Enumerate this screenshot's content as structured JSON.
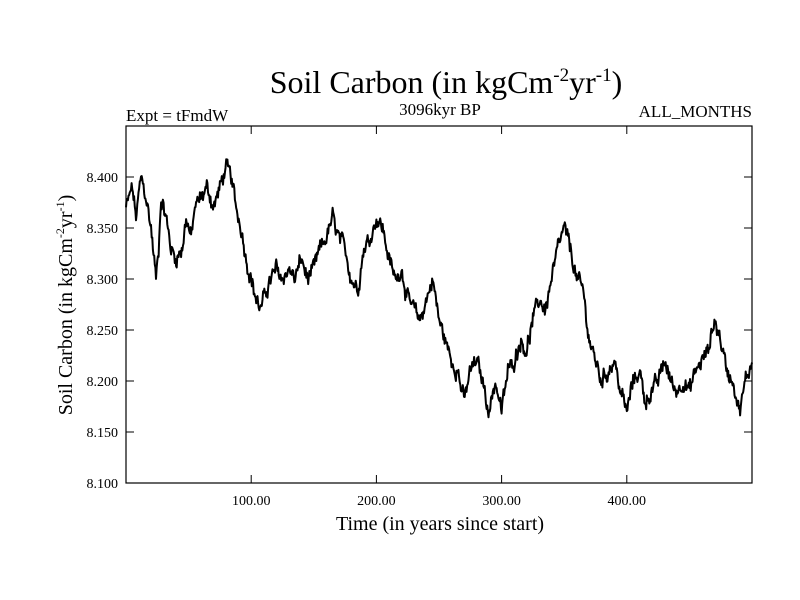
{
  "chart_data": {
    "type": "line",
    "title": {
      "base": "Soil Carbon (in kgCm",
      "exp1": "-2",
      "mid": "yr",
      "exp2": "-1",
      "close": ")"
    },
    "left_label": "Expt = tFmdW",
    "center_label": "3096kyr BP",
    "right_label": "ALL_MONTHS",
    "xlabel": "Time (in years since start)",
    "ylabel": {
      "base": "Soil Carbon (in kgCm",
      "exp1": "-2",
      "mid": "yr",
      "exp2": "-1",
      "close": ")"
    },
    "xlim": [
      0,
      500
    ],
    "ylim": [
      8.1,
      8.45
    ],
    "x_ticks": [
      100,
      200,
      300,
      400
    ],
    "x_tick_labels": [
      "100.00",
      "200.00",
      "300.00",
      "400.00"
    ],
    "y_ticks": [
      8.1,
      8.15,
      8.2,
      8.25,
      8.3,
      8.35,
      8.4
    ],
    "y_tick_labels": [
      "8.100",
      "8.150",
      "8.200",
      "8.250",
      "8.300",
      "8.350",
      "8.400"
    ],
    "noise": 0.009,
    "series": [
      {
        "name": "Soil Carbon",
        "color": "#000000",
        "x": [
          0,
          5,
          8,
          12,
          16,
          20,
          24,
          26,
          28,
          32,
          36,
          40,
          45,
          48,
          52,
          55,
          60,
          65,
          70,
          75,
          80,
          84,
          88,
          92,
          96,
          100,
          104,
          108,
          112,
          116,
          120,
          125,
          130,
          135,
          140,
          145,
          150,
          155,
          160,
          165,
          170,
          175,
          180,
          185,
          190,
          195,
          200,
          205,
          210,
          215,
          220,
          225,
          230,
          235,
          240,
          245,
          250,
          255,
          260,
          265,
          270,
          275,
          280,
          285,
          290,
          295,
          300,
          305,
          310,
          315,
          320,
          325,
          330,
          335,
          340,
          345,
          350,
          355,
          360,
          365,
          370,
          375,
          380,
          385,
          390,
          395,
          400,
          405,
          410,
          415,
          420,
          425,
          430,
          435,
          440,
          445,
          450,
          455,
          460,
          465,
          470,
          475,
          480,
          485,
          490,
          495,
          500
        ],
        "y": [
          8.37,
          8.39,
          8.36,
          8.4,
          8.38,
          8.35,
          8.3,
          8.33,
          8.38,
          8.36,
          8.33,
          8.32,
          8.33,
          8.36,
          8.34,
          8.37,
          8.38,
          8.39,
          8.37,
          8.39,
          8.41,
          8.4,
          8.37,
          8.35,
          8.32,
          8.3,
          8.28,
          8.27,
          8.29,
          8.3,
          8.31,
          8.3,
          8.31,
          8.3,
          8.32,
          8.3,
          8.31,
          8.33,
          8.34,
          8.36,
          8.34,
          8.33,
          8.3,
          8.29,
          8.33,
          8.34,
          8.36,
          8.35,
          8.32,
          8.3,
          8.31,
          8.28,
          8.27,
          8.26,
          8.28,
          8.3,
          8.26,
          8.24,
          8.22,
          8.21,
          8.18,
          8.21,
          8.22,
          8.2,
          8.17,
          8.2,
          8.17,
          8.21,
          8.22,
          8.24,
          8.23,
          8.26,
          8.28,
          8.27,
          8.3,
          8.33,
          8.35,
          8.33,
          8.3,
          8.29,
          8.24,
          8.22,
          8.2,
          8.21,
          8.22,
          8.19,
          8.17,
          8.2,
          8.21,
          8.18,
          8.19,
          8.2,
          8.22,
          8.2,
          8.19,
          8.2,
          8.19,
          8.21,
          8.22,
          8.23,
          8.26,
          8.24,
          8.21,
          8.2,
          8.17,
          8.2,
          8.22
        ]
      }
    ]
  }
}
